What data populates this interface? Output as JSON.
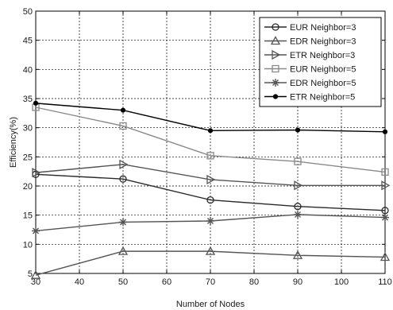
{
  "chart_data": {
    "type": "line",
    "xlabel": "Number of Nodes",
    "ylabel": "Efficiency(%)",
    "xlim": [
      30,
      110
    ],
    "ylim": [
      5,
      50
    ],
    "xticks": [
      30,
      40,
      50,
      60,
      70,
      80,
      90,
      100,
      110
    ],
    "yticks": [
      5,
      10,
      15,
      20,
      25,
      30,
      35,
      40,
      45,
      50
    ],
    "grid": true,
    "legend_position": "top-right",
    "x": [
      30,
      50,
      70,
      90,
      110
    ],
    "series": [
      {
        "name": "EUR Neighbor=3",
        "values": [
          22.0,
          21.2,
          17.6,
          16.5,
          15.8
        ],
        "color": "#2a2a2a",
        "marker": "circle"
      },
      {
        "name": "EDR Neighbor=3",
        "values": [
          4.7,
          8.8,
          8.8,
          8.1,
          7.8
        ],
        "color": "#555555",
        "marker": "triangle-up"
      },
      {
        "name": "ETR Neighbor=3",
        "values": [
          22.3,
          23.7,
          21.1,
          20.1,
          20.1
        ],
        "color": "#555555",
        "marker": "triangle-right"
      },
      {
        "name": "EUR Neighbor=5",
        "values": [
          33.5,
          30.3,
          25.2,
          24.2,
          22.4
        ],
        "color": "#8a8a8a",
        "marker": "square"
      },
      {
        "name": "EDR Neighbor=5",
        "values": [
          12.3,
          13.8,
          14.0,
          15.1,
          14.6
        ],
        "color": "#555555",
        "marker": "star"
      },
      {
        "name": "ETR Neighbor=5",
        "values": [
          34.2,
          33.0,
          29.5,
          29.6,
          29.3
        ],
        "color": "#000000",
        "marker": "dot"
      }
    ]
  }
}
